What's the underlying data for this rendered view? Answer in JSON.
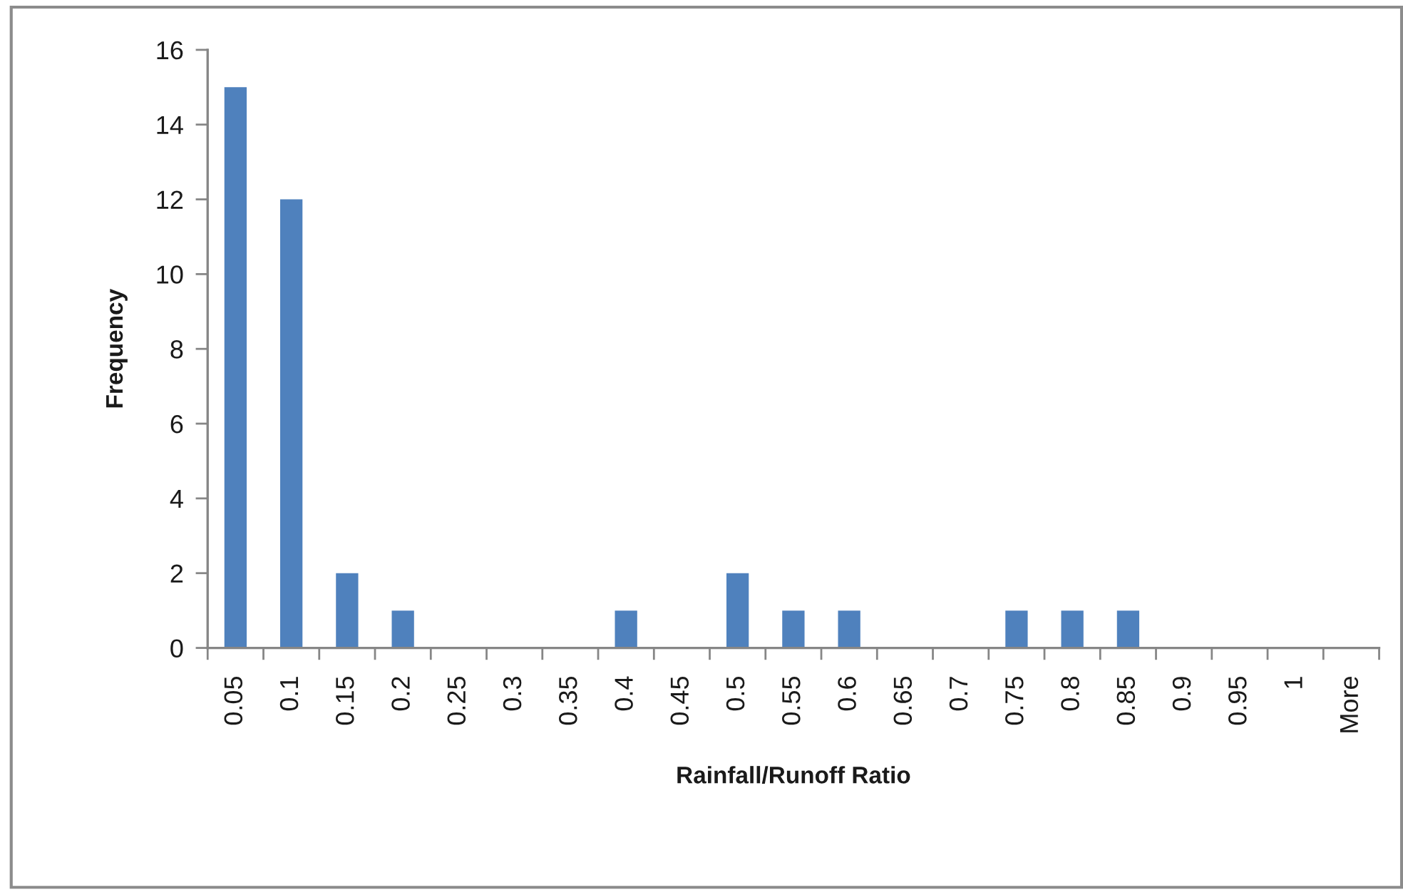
{
  "chart_data": {
    "type": "bar",
    "xlabel": "Rainfall/Runoff Ratio",
    "ylabel": "Frequency",
    "categories": [
      "0.05",
      "0.1",
      "0.15",
      "0.2",
      "0.25",
      "0.3",
      "0.35",
      "0.4",
      "0.45",
      "0.5",
      "0.55",
      "0.6",
      "0.65",
      "0.7",
      "0.75",
      "0.8",
      "0.85",
      "0.9",
      "0.95",
      "1",
      "More"
    ],
    "values": [
      15,
      12,
      2,
      1,
      0,
      0,
      0,
      1,
      0,
      2,
      1,
      1,
      0,
      0,
      1,
      1,
      1,
      0,
      0,
      0,
      0
    ],
    "color": "#4f81bd",
    "ylim": [
      0,
      16
    ],
    "yticks": [
      0,
      2,
      4,
      6,
      8,
      10,
      12,
      14,
      16
    ]
  }
}
